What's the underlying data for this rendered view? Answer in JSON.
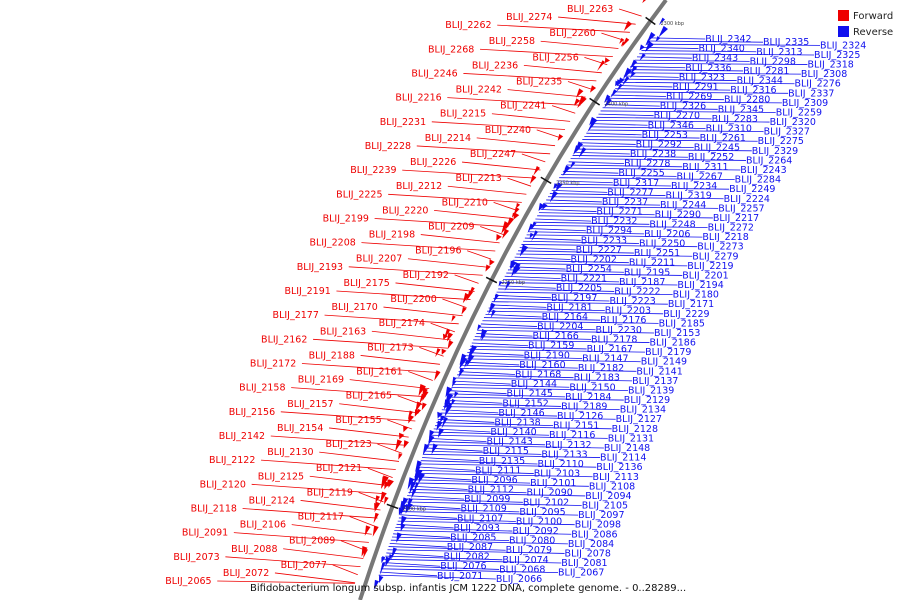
{
  "title": "Bifidobacterium longum subsp. infantis JCM 1222 DNA, complete genome. - 0..28289...",
  "legend": {
    "forward": {
      "label": "Forward",
      "color": "#ee0000"
    },
    "reverse": {
      "label": "Reverse",
      "color": "#1010ee"
    }
  },
  "colors": {
    "backbone": "#777777",
    "tick_text": "#444444",
    "ruler": "#111111"
  },
  "ruler_ticks": [
    "2300 kbp",
    "2400 kbp",
    "2250 kbp",
    "2350 kbp",
    "2200 kbp"
  ],
  "forward_labels": [
    "BLIJ_2263",
    "BLIJ_2274",
    "BLIJ_2262",
    "BLIJ_2260",
    "BLIJ_2258",
    "BLIJ_2268",
    "BLIJ_2256",
    "BLIJ_2236",
    "BLIJ_2246",
    "BLIJ_2235",
    "BLIJ_2242",
    "BLIJ_2216",
    "BLIJ_2241",
    "BLIJ_2215",
    "BLIJ_2231",
    "BLIJ_2240",
    "BLIJ_2214",
    "BLIJ_2228",
    "BLIJ_2247",
    "BLIJ_2226",
    "BLIJ_2239",
    "BLIJ_2213",
    "BLIJ_2212",
    "BLIJ_2225",
    "BLIJ_2210",
    "BLIJ_2220",
    "BLIJ_2199",
    "BLIJ_2209",
    "BLIJ_2198",
    "BLIJ_2208",
    "BLIJ_2196",
    "BLIJ_2207",
    "BLIJ_2193",
    "BLIJ_2192",
    "BLIJ_2175",
    "BLIJ_2191",
    "BLIJ_2200",
    "BLIJ_2170",
    "BLIJ_2177",
    "BLIJ_2174",
    "BLIJ_2163",
    "BLIJ_2162",
    "BLIJ_2173",
    "BLIJ_2188",
    "BLIJ_2172",
    "BLIJ_2161",
    "BLIJ_2169",
    "BLIJ_2158",
    "BLIJ_2165",
    "BLIJ_2157",
    "BLIJ_2156",
    "BLIJ_2155",
    "BLIJ_2154",
    "BLIJ_2142",
    "BLIJ_2123",
    "BLIJ_2130",
    "BLIJ_2122",
    "BLIJ_2121",
    "BLIJ_2125",
    "BLIJ_2120",
    "BLIJ_2119",
    "BLIJ_2124",
    "BLIJ_2118",
    "BLIJ_2117",
    "BLIJ_2106",
    "BLIJ_2091",
    "BLIJ_2089",
    "BLIJ_2088",
    "BLIJ_2073",
    "BLIJ_2077",
    "BLIJ_2072",
    "BLIJ_2065"
  ],
  "reverse_labels": [
    "BLIJ_2342",
    "BLIJ_2335",
    "BLIJ_2324",
    "BLIJ_2340",
    "BLIJ_2313",
    "BLIJ_2325",
    "BLIJ_2343",
    "BLIJ_2298",
    "BLIJ_2318",
    "BLIJ_2336",
    "BLIJ_2281",
    "BLIJ_2308",
    "BLIJ_2323",
    "BLIJ_2344",
    "BLIJ_2276",
    "BLIJ_2291",
    "BLIJ_2316",
    "BLIJ_2337",
    "BLIJ_2269",
    "BLIJ_2280",
    "BLIJ_2309",
    "BLIJ_2326",
    "BLIJ_2345",
    "BLIJ_2259",
    "BLIJ_2270",
    "BLIJ_2283",
    "BLIJ_2320",
    "BLIJ_2346",
    "BLIJ_2310",
    "BLIJ_2327",
    "BLIJ_2253",
    "BLIJ_2261",
    "BLIJ_2275",
    "BLIJ_2292",
    "BLIJ_2245",
    "BLIJ_2329",
    "BLIJ_2238",
    "BLIJ_2252",
    "BLIJ_2264",
    "BLIJ_2278",
    "BLIJ_2311",
    "BLIJ_2243",
    "BLIJ_2255",
    "BLIJ_2267",
    "BLIJ_2284",
    "BLIJ_2317",
    "BLIJ_2234",
    "BLIJ_2249",
    "BLIJ_2277",
    "BLIJ_2319",
    "BLIJ_2224",
    "BLIJ_2237",
    "BLIJ_2244",
    "BLIJ_2257",
    "BLIJ_2271",
    "BLIJ_2290",
    "BLIJ_2217",
    "BLIJ_2232",
    "BLIJ_2248",
    "BLIJ_2272",
    "BLIJ_2294",
    "BLIJ_2206",
    "BLIJ_2218",
    "BLIJ_2233",
    "BLIJ_2250",
    "BLIJ_2273",
    "BLIJ_2227",
    "BLIJ_2251",
    "BLIJ_2279",
    "BLIJ_2202",
    "BLIJ_2211",
    "BLIJ_2219",
    "BLIJ_2254",
    "BLIJ_2195",
    "BLIJ_2201",
    "BLIJ_2221",
    "BLIJ_2187",
    "BLIJ_2194",
    "BLIJ_2205",
    "BLIJ_2222",
    "BLIJ_2180",
    "BLIJ_2197",
    "BLIJ_2223",
    "BLIJ_2171",
    "BLIJ_2181",
    "BLIJ_2203",
    "BLIJ_2229",
    "BLIJ_2164",
    "BLIJ_2176",
    "BLIJ_2185",
    "BLIJ_2204",
    "BLIJ_2230",
    "BLIJ_2153",
    "BLIJ_2166",
    "BLIJ_2178",
    "BLIJ_2186",
    "BLIJ_2159",
    "BLIJ_2167",
    "BLIJ_2179",
    "BLIJ_2190",
    "BLIJ_2147",
    "BLIJ_2149",
    "BLIJ_2160",
    "BLIJ_2182",
    "BLIJ_2141",
    "BLIJ_2168",
    "BLIJ_2183",
    "BLIJ_2137",
    "BLIJ_2144",
    "BLIJ_2150",
    "BLIJ_2139",
    "BLIJ_2145",
    "BLIJ_2184",
    "BLIJ_2129",
    "BLIJ_2152",
    "BLIJ_2189",
    "BLIJ_2134",
    "BLIJ_2146",
    "BLIJ_2126",
    "BLIJ_2127",
    "BLIJ_2138",
    "BLIJ_2151",
    "BLIJ_2128",
    "BLIJ_2140",
    "BLIJ_2116",
    "BLIJ_2131",
    "BLIJ_2143",
    "BLIJ_2132",
    "BLIJ_2148",
    "BLIJ_2115",
    "BLIJ_2133",
    "BLIJ_2114",
    "BLIJ_2135",
    "BLIJ_2110",
    "BLIJ_2136",
    "BLIJ_2111",
    "BLIJ_2103",
    "BLIJ_2113",
    "BLIJ_2096",
    "BLIJ_2101",
    "BLIJ_2108",
    "BLIJ_2112",
    "BLIJ_2090",
    "BLIJ_2094",
    "BLIJ_2099",
    "BLIJ_2102",
    "BLIJ_2105",
    "BLIJ_2109",
    "BLIJ_2095",
    "BLIJ_2097",
    "BLIJ_2107",
    "BLIJ_2100",
    "BLIJ_2098",
    "BLIJ_2093",
    "BLIJ_2092",
    "BLIJ_2086",
    "BLIJ_2085",
    "BLIJ_2080",
    "BLIJ_2084",
    "BLIJ_2087",
    "BLIJ_2079",
    "BLIJ_2078",
    "BLIJ_2082",
    "BLIJ_2074",
    "BLIJ_2081",
    "BLIJ_2076",
    "BLIJ_2068",
    "BLIJ_2067",
    "BLIJ_2071",
    "BLIJ_2066"
  ]
}
